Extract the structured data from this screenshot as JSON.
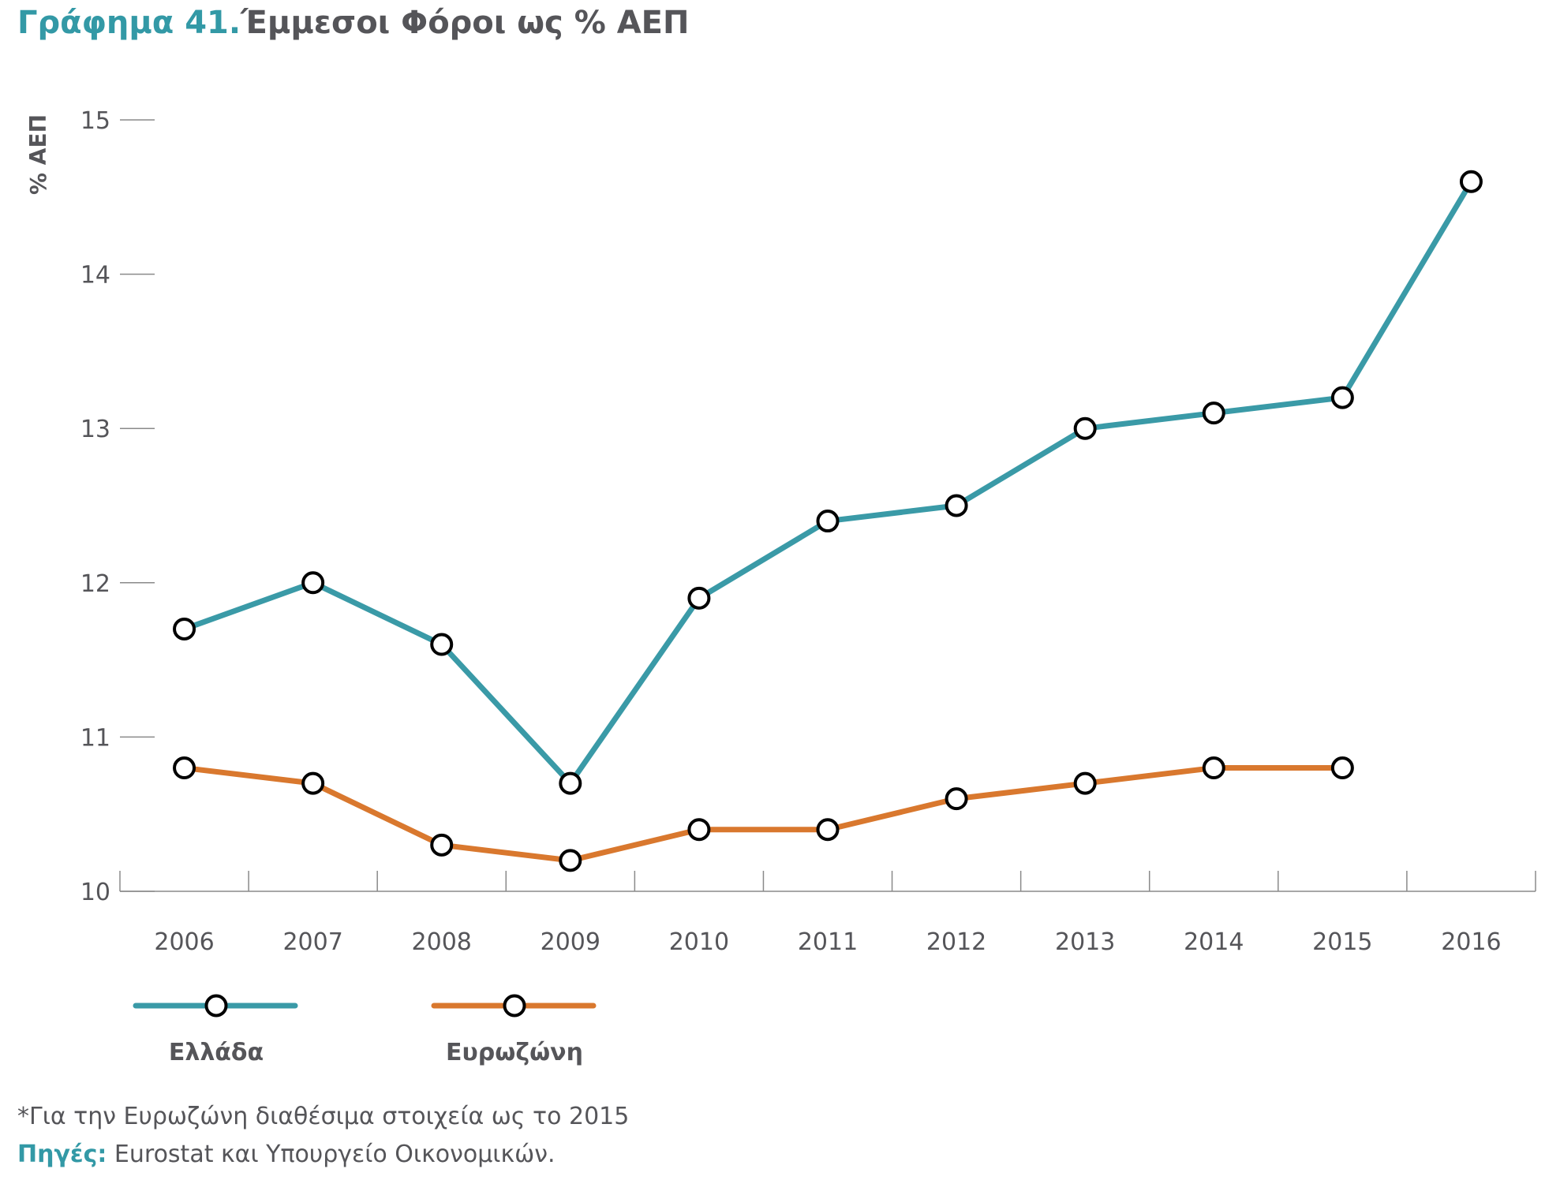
{
  "title": {
    "number": "Γράφημα 41.",
    "text": "Έμμεσοι Φόροι ως % ΑΕΠ"
  },
  "colors": {
    "accent": "#3399a6",
    "greece": "#3a9aa7",
    "eurozone": "#d9782e",
    "text": "#555559",
    "axis": "#8a8a8a"
  },
  "chart_data": {
    "type": "line",
    "title": "Έμμεσοι Φόροι ως % ΑΕΠ",
    "xlabel": "",
    "ylabel": "% ΑΕΠ",
    "ylim": [
      10,
      15
    ],
    "yticks": [
      "10",
      "11",
      "12",
      "13",
      "14",
      "15"
    ],
    "categories": [
      "2006",
      "2007",
      "2008",
      "2009",
      "2010",
      "2011",
      "2012",
      "2013",
      "2014",
      "2015",
      "2016"
    ],
    "grid": false,
    "legend_position": "bottom-left",
    "series": [
      {
        "name": "Ελλάδα",
        "color": "#3a9aa7",
        "values": [
          11.7,
          12.0,
          11.6,
          10.7,
          11.9,
          12.4,
          12.5,
          13.0,
          13.1,
          13.2,
          14.6
        ]
      },
      {
        "name": "Ευρωζώνη",
        "color": "#d9782e",
        "values": [
          10.8,
          10.7,
          10.3,
          10.2,
          10.4,
          10.4,
          10.6,
          10.7,
          10.8,
          10.8,
          null
        ]
      }
    ]
  },
  "footnote": "*Για την Ευρωζώνη διαθέσιμα στοιχεία ως το 2015",
  "source": {
    "label": "Πηγές:",
    "text": " Eurostat και Υπουργείο Οικονομικών."
  }
}
